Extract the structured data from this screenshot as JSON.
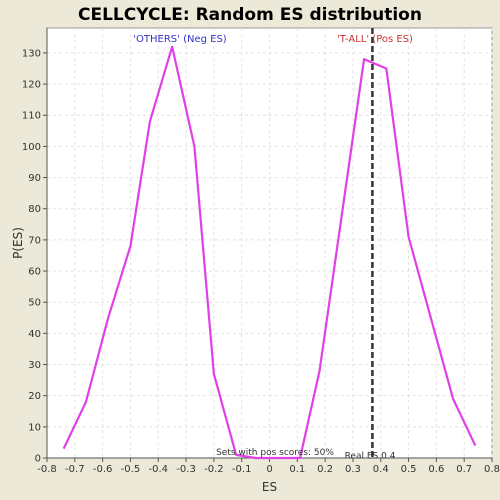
{
  "chart_data": {
    "type": "line",
    "title": "CELLCYCLE: Random ES distribution",
    "xlabel": "ES",
    "ylabel": "P(ES)",
    "xlim": [
      -0.8,
      0.8
    ],
    "ylim": [
      0,
      138
    ],
    "x_ticks": [
      -0.8,
      -0.7,
      -0.6,
      -0.5,
      -0.4,
      -0.3,
      -0.2,
      -0.1,
      0.0,
      0.1,
      0.2,
      0.3,
      0.4,
      0.5,
      0.6,
      0.7,
      0.8
    ],
    "y_ticks": [
      0,
      10,
      20,
      30,
      40,
      50,
      60,
      70,
      80,
      90,
      100,
      110,
      120,
      130
    ],
    "grid": true,
    "series": [
      {
        "color": "#E040E8",
        "points": [
          [
            -0.74,
            3
          ],
          [
            -0.66,
            18
          ],
          [
            -0.58,
            45
          ],
          [
            -0.5,
            68
          ],
          [
            -0.43,
            108
          ],
          [
            -0.35,
            132
          ],
          [
            -0.27,
            100
          ],
          [
            -0.2,
            27
          ],
          [
            -0.12,
            1
          ],
          [
            -0.05,
            0
          ],
          [
            0.04,
            0
          ],
          [
            0.11,
            0
          ],
          [
            0.18,
            28
          ],
          [
            0.26,
            78
          ],
          [
            0.34,
            128
          ],
          [
            0.42,
            125
          ],
          [
            0.5,
            71
          ],
          [
            0.58,
            45
          ],
          [
            0.66,
            19
          ],
          [
            0.74,
            4
          ]
        ]
      }
    ],
    "real_es": 0.37,
    "annotations": {
      "neg_label": "'OTHERS' (Neg ES)",
      "pos_label": "'T-ALL' (Pos ES)",
      "pos_scores": "Sets with pos scores: 50%",
      "real_es_label": "Real ES 0.4"
    },
    "colors": {
      "background": "#ECE9D8",
      "plot_background": "#FFFFFF",
      "line": "#E040E8",
      "grid": "#E2E2E2",
      "neg_label": "#3333CC",
      "pos_label": "#CC3333",
      "real_es_line": "#333333"
    }
  }
}
